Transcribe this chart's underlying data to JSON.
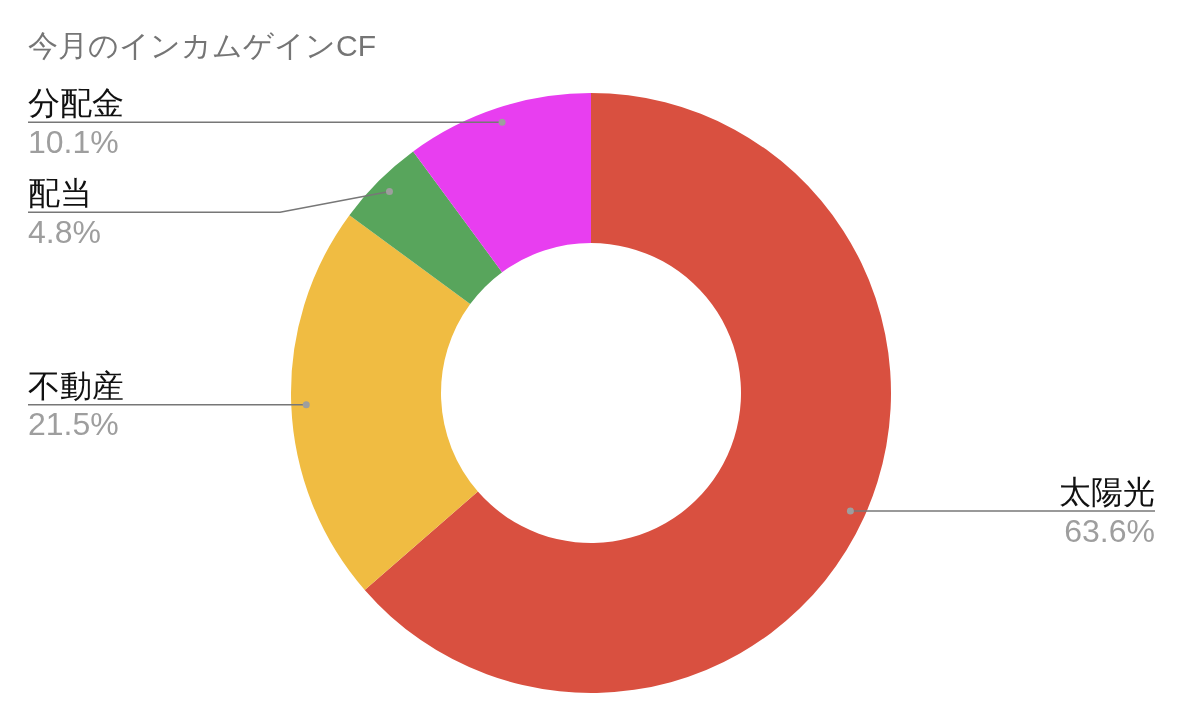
{
  "chart_data": {
    "type": "donut",
    "title": "今月のインカムゲインCF",
    "categories": [
      "太陽光",
      "不動産",
      "配当",
      "分配金"
    ],
    "values": [
      63.6,
      21.5,
      4.8,
      10.1
    ],
    "value_labels": [
      "63.6%",
      "21.5%",
      "4.8%",
      "10.1%"
    ],
    "colors": [
      "#d95040",
      "#f0bc42",
      "#58a55c",
      "#e83ef0"
    ],
    "legend": false
  }
}
